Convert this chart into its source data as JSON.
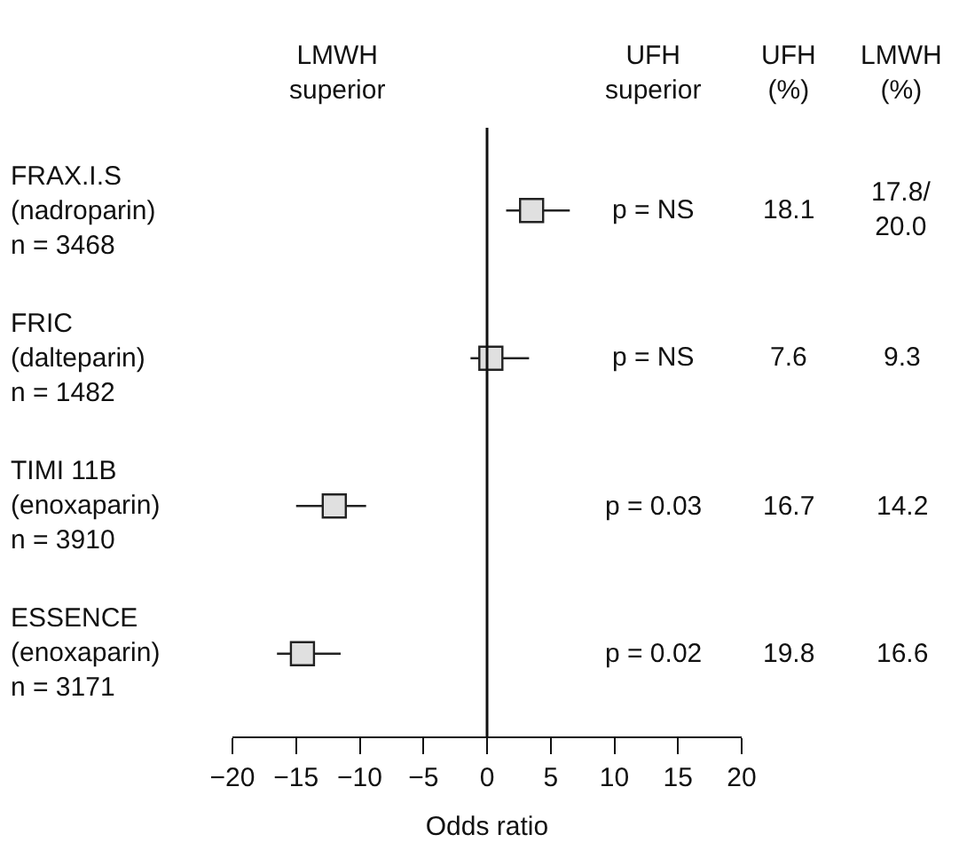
{
  "chart_data": {
    "type": "scatter",
    "orientation": "horizontal",
    "marker": "square",
    "color": "#e0e0e0",
    "categories": [
      "FRAX.I.S\n(nadroparin)\nn = 3468",
      "FRIC\n(dalteparin)\nn = 1482",
      "TIMI 11B\n(enoxaparin)\nn = 3910",
      "ESSENCE\n(enoxaparin)\nn = 3171"
    ],
    "values": [
      3.5,
      0.3,
      -12,
      -14.5
    ],
    "errors": [
      [
        1.5,
        6.5
      ],
      [
        -1.3,
        3.3
      ],
      [
        -15,
        -9.5
      ],
      [
        -16.5,
        -11.5
      ]
    ],
    "xlim": [
      -20,
      20
    ],
    "xticks": [
      -20,
      -15,
      -10,
      -5,
      0,
      5,
      10,
      15,
      20
    ],
    "xlabel": "Odds ratio",
    "grid": false,
    "ref_lines": [
      {
        "axis": "x",
        "value": 0
      }
    ],
    "annotations": [
      "LMWH\nsuperior",
      "UFH\nsuperior",
      "UFH\n(%)",
      "LMWH\n(%)",
      "p = NS",
      "18.1",
      "17.8/\n20.0",
      "p = NS",
      "7.6",
      "9.3",
      "p = 0.03",
      "16.7",
      "14.2",
      "p = 0.02",
      "19.8",
      "16.6"
    ]
  }
}
